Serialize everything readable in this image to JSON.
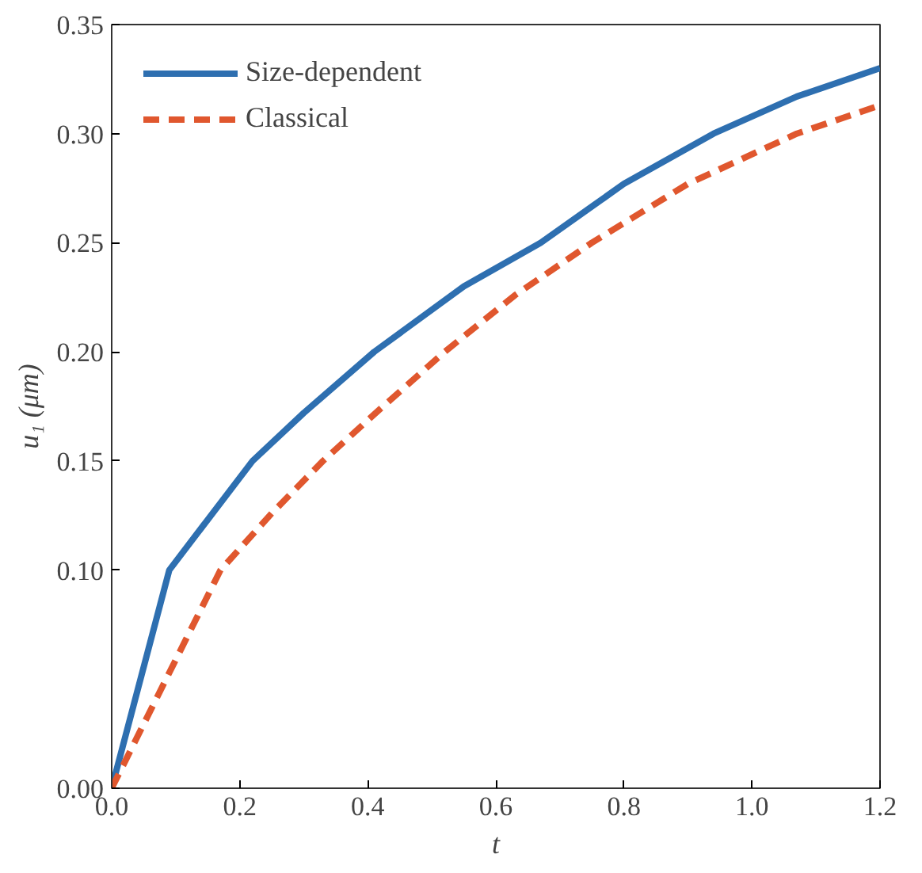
{
  "chart_data": {
    "type": "line",
    "xlabel": "t",
    "ylabel": "u₁ (μm)",
    "xlim": [
      0,
      1.2
    ],
    "ylim": [
      0,
      0.35
    ],
    "xticks": [
      {
        "value": 0,
        "label": "0.0"
      },
      0.2,
      0.4,
      0.6,
      0.8,
      {
        "value": 1,
        "label": "1.0"
      },
      1.2
    ],
    "yticks": [
      {
        "value": 0,
        "label": "0.00"
      },
      {
        "value": 0.1,
        "label": "0.10"
      },
      0.15,
      {
        "value": 0.2,
        "label": "0.20"
      },
      0.25,
      {
        "value": 0.3,
        "label": "0.30"
      },
      0.35
    ],
    "grid": false,
    "legend": "top left",
    "series": [
      {
        "name": "Size-dependent",
        "color": "#2e6fb0",
        "line_style": "solid",
        "x": [
          0,
          0.09,
          0.22,
          0.3,
          0.41,
          0.55,
          0.67,
          0.8,
          0.94,
          1.07,
          1.2
        ],
        "values": [
          0,
          0.1,
          0.15,
          0.172,
          0.2,
          0.23,
          0.25,
          0.277,
          0.3,
          0.317,
          0.33
        ]
      },
      {
        "name": "Classical",
        "color": "#e0572e",
        "line_style": "dashed",
        "x": [
          0,
          0.17,
          0.25,
          0.33,
          0.42,
          0.52,
          0.63,
          0.75,
          0.9,
          1.07,
          1.2
        ],
        "values": [
          0,
          0.1,
          0.126,
          0.15,
          0.174,
          0.2,
          0.226,
          0.25,
          0.277,
          0.3,
          0.313
        ]
      }
    ]
  }
}
